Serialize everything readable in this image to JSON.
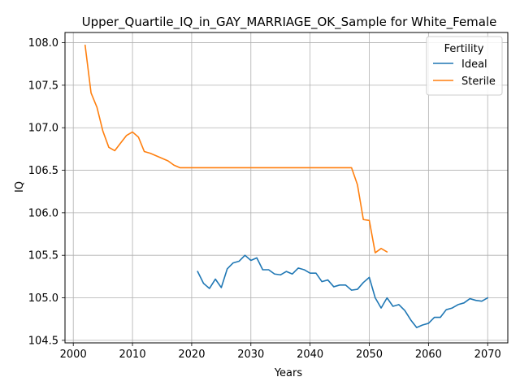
{
  "chart_data": {
    "type": "line",
    "title": "Upper_Quartile_IQ_in_GAY_MARRIAGE_OK_Sample for White_Female",
    "xlabel": "Years",
    "ylabel": "IQ",
    "xlim": [
      1998.6,
      2073.4
    ],
    "ylim": [
      104.47,
      108.12
    ],
    "x_ticks": [
      2000,
      2010,
      2020,
      2030,
      2040,
      2050,
      2060,
      2070
    ],
    "y_ticks": [
      104.5,
      105.0,
      105.5,
      106.0,
      106.5,
      107.0,
      107.5,
      108.0
    ],
    "x_tick_labels": [
      "2000",
      "2010",
      "2020",
      "2030",
      "2040",
      "2050",
      "2060",
      "2070"
    ],
    "y_tick_labels": [
      "104.5",
      "105.0",
      "105.5",
      "106.0",
      "106.5",
      "107.0",
      "107.5",
      "108.0"
    ],
    "grid": true,
    "legend": {
      "title": "Fertility",
      "placement": "top-right"
    },
    "series": [
      {
        "name": "Ideal",
        "color": "#1f77b4",
        "x": [
          2021,
          2022,
          2023,
          2024,
          2025,
          2026,
          2027,
          2028,
          2029,
          2030,
          2031,
          2032,
          2033,
          2034,
          2035,
          2036,
          2037,
          2038,
          2039,
          2040,
          2041,
          2042,
          2043,
          2044,
          2045,
          2046,
          2047,
          2048,
          2049,
          2050,
          2051,
          2052,
          2053,
          2054,
          2055,
          2056,
          2057,
          2058,
          2059,
          2060,
          2061,
          2062,
          2063,
          2064,
          2065,
          2066,
          2067,
          2068,
          2069,
          2070
        ],
        "y": [
          105.31,
          105.17,
          105.11,
          105.22,
          105.12,
          105.34,
          105.41,
          105.43,
          105.5,
          105.44,
          105.47,
          105.33,
          105.33,
          105.28,
          105.27,
          105.31,
          105.28,
          105.35,
          105.33,
          105.29,
          105.29,
          105.19,
          105.21,
          105.13,
          105.15,
          105.15,
          105.09,
          105.1,
          105.18,
          105.24,
          105.0,
          104.88,
          105.0,
          104.9,
          104.92,
          104.85,
          104.74,
          104.65,
          104.68,
          104.7,
          104.77,
          104.77,
          104.86,
          104.88,
          104.92,
          104.94,
          104.99,
          104.97,
          104.96,
          105.0
        ]
      },
      {
        "name": "Sterile",
        "color": "#ff7f0e",
        "x": [
          2002,
          2003,
          2004,
          2005,
          2006,
          2007,
          2008,
          2009,
          2010,
          2011,
          2012,
          2013,
          2014,
          2015,
          2016,
          2017,
          2018,
          2019,
          2020,
          2021,
          2022,
          2023,
          2024,
          2025,
          2026,
          2027,
          2028,
          2029,
          2030,
          2031,
          2032,
          2033,
          2034,
          2035,
          2036,
          2037,
          2038,
          2039,
          2040,
          2041,
          2042,
          2043,
          2044,
          2045,
          2046,
          2047,
          2048,
          2049,
          2050,
          2051,
          2052,
          2053
        ],
        "y": [
          107.97,
          107.41,
          107.24,
          106.96,
          106.77,
          106.73,
          106.82,
          106.91,
          106.95,
          106.89,
          106.72,
          106.7,
          106.67,
          106.64,
          106.61,
          106.56,
          106.53,
          106.53,
          106.53,
          106.53,
          106.53,
          106.53,
          106.53,
          106.53,
          106.53,
          106.53,
          106.53,
          106.53,
          106.53,
          106.53,
          106.53,
          106.53,
          106.53,
          106.53,
          106.53,
          106.53,
          106.53,
          106.53,
          106.53,
          106.53,
          106.53,
          106.53,
          106.53,
          106.53,
          106.53,
          106.53,
          106.33,
          105.92,
          105.91,
          105.53,
          105.58,
          105.54
        ]
      }
    ]
  }
}
